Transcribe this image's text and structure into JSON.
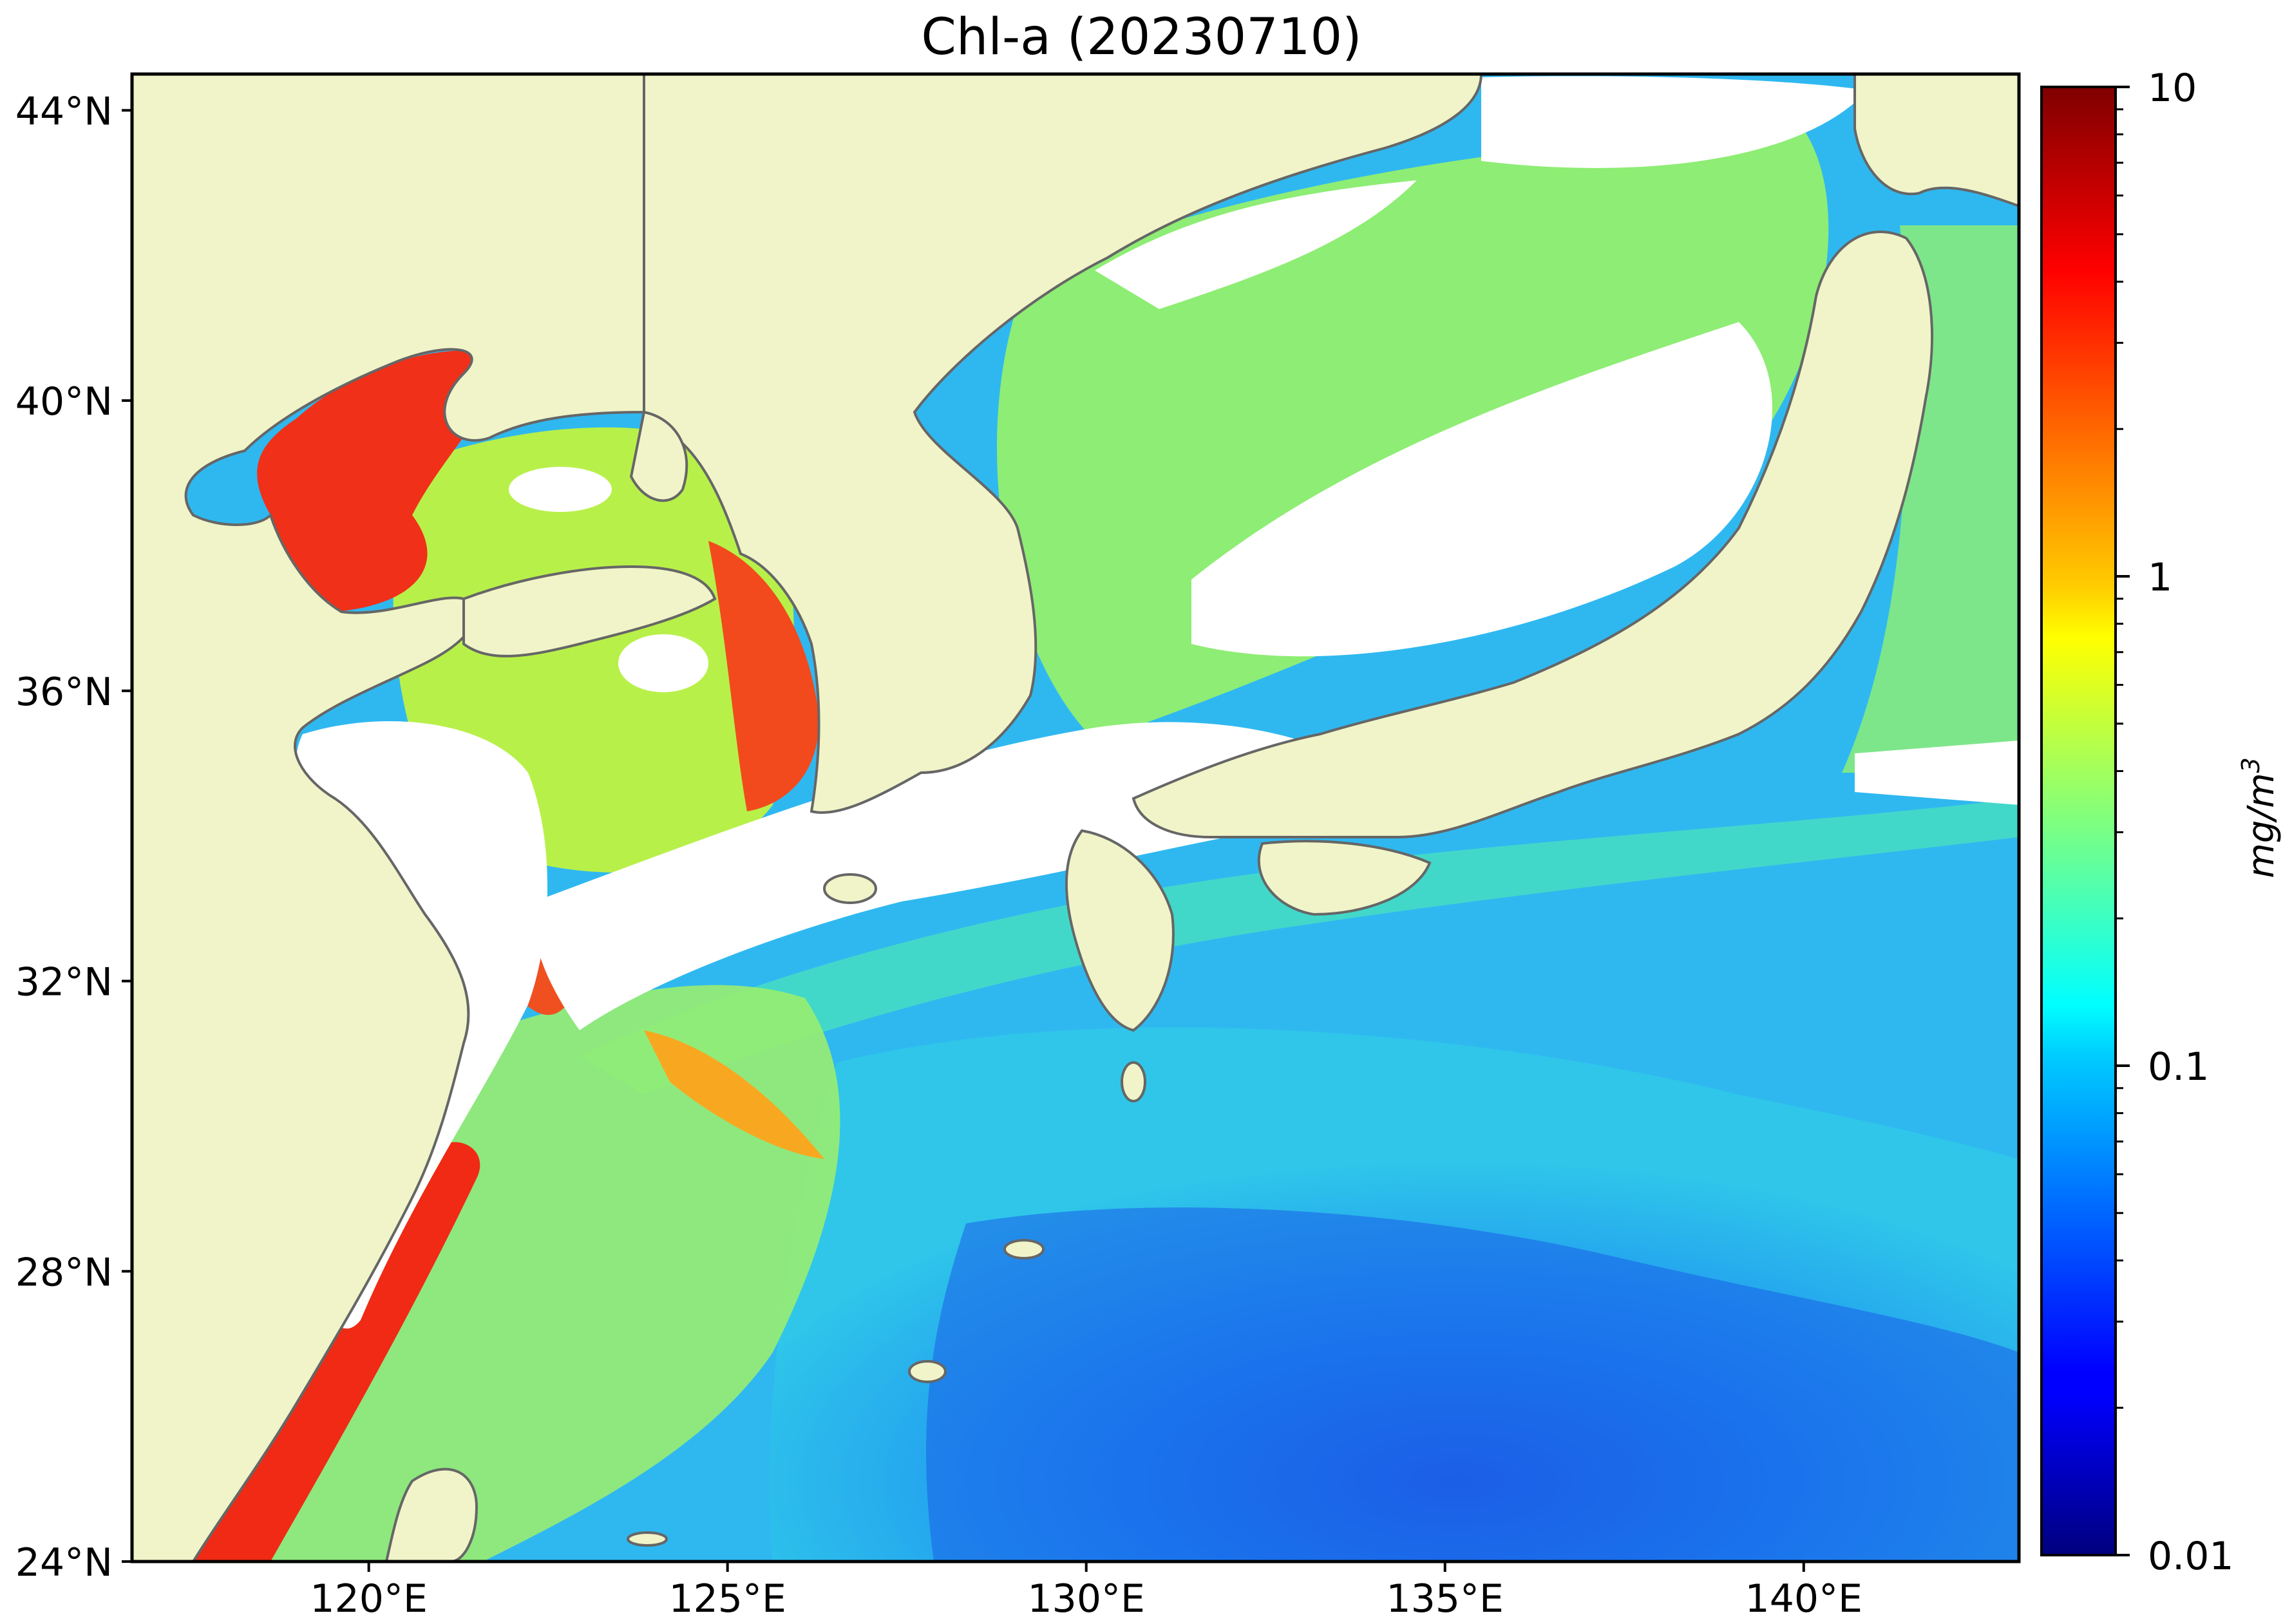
{
  "title": "Chl-a (20230710)",
  "map": {
    "projection": "equirectangular",
    "lon_range": [
      116.7,
      143.0
    ],
    "lat_range": [
      24.0,
      44.5
    ],
    "lon_ticks": [
      {
        "value": 120,
        "label": "120°E"
      },
      {
        "value": 125,
        "label": "125°E"
      },
      {
        "value": 130,
        "label": "130°E"
      },
      {
        "value": 135,
        "label": "135°E"
      },
      {
        "value": 140,
        "label": "140°E"
      }
    ],
    "lat_ticks": [
      {
        "value": 44,
        "label": "44°N"
      },
      {
        "value": 40,
        "label": "40°N"
      },
      {
        "value": 36,
        "label": "36°N"
      },
      {
        "value": 32,
        "label": "32°N"
      },
      {
        "value": 28,
        "label": "28°N"
      },
      {
        "value": 24,
        "label": "24°N"
      }
    ],
    "land_color": "#f0f4c8",
    "coastline_color": "#666666",
    "no_data_color": "#ffffff",
    "grid": false
  },
  "colorbar": {
    "label_main": "mg/m",
    "label_sup": "3",
    "scale": "log",
    "range": [
      0.01,
      10
    ],
    "colormap": "jet",
    "ticks": [
      {
        "value": 10,
        "label": "10"
      },
      {
        "value": 1,
        "label": "1"
      },
      {
        "value": 0.1,
        "label": "0.1"
      },
      {
        "value": 0.01,
        "label": "0.01"
      }
    ]
  }
}
